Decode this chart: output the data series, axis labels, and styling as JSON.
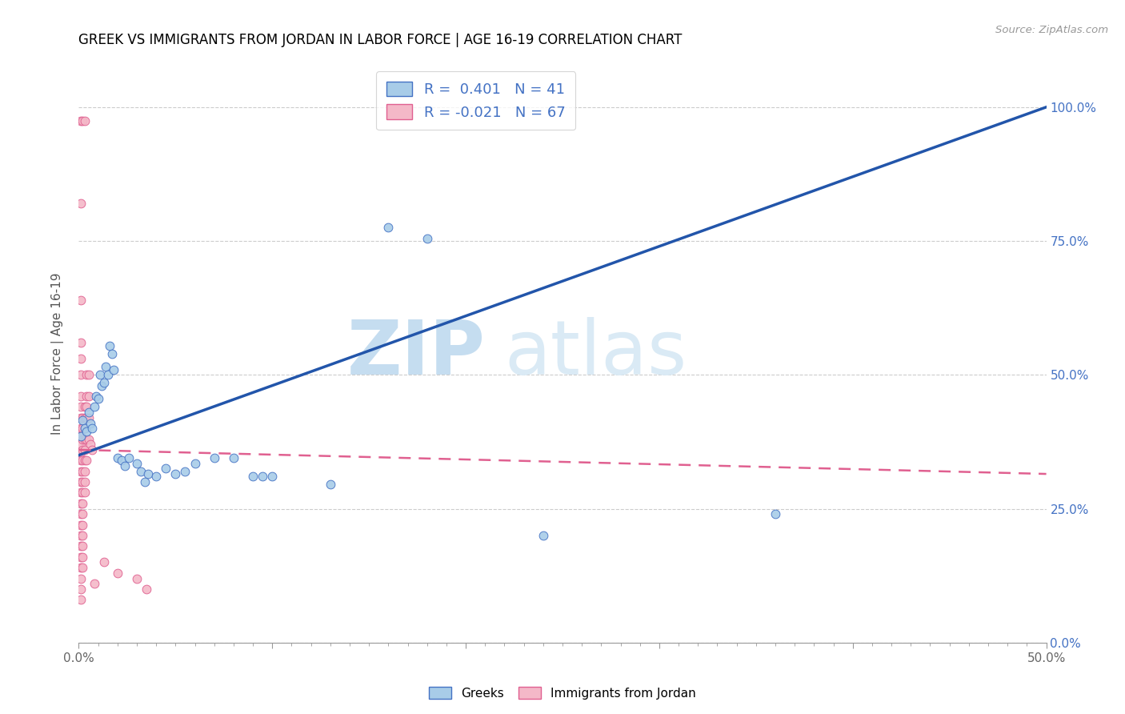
{
  "title": "GREEK VS IMMIGRANTS FROM JORDAN IN LABOR FORCE | AGE 16-19 CORRELATION CHART",
  "source": "Source: ZipAtlas.com",
  "ylabel": "In Labor Force | Age 16-19",
  "xlim": [
    0.0,
    0.5
  ],
  "ylim": [
    0.0,
    1.08
  ],
  "xticks": [
    0.0,
    0.1,
    0.2,
    0.3,
    0.4,
    0.5
  ],
  "xticklabels": [
    "0.0%",
    "",
    "",
    "",
    "",
    "50.0%"
  ],
  "yticks": [
    0.0,
    0.25,
    0.5,
    0.75,
    1.0
  ],
  "yticklabels_right": [
    "0.0%",
    "25.0%",
    "50.0%",
    "75.0%",
    "100.0%"
  ],
  "watermark_zip": "ZIP",
  "watermark_atlas": "atlas",
  "blue_color": "#a8cce8",
  "pink_color": "#f4b8c8",
  "blue_edge": "#4472c4",
  "pink_edge": "#e06090",
  "trendline_blue": "#2255aa",
  "trendline_pink": "#e06090",
  "blue_scatter": [
    [
      0.001,
      0.385
    ],
    [
      0.002,
      0.415
    ],
    [
      0.003,
      0.4
    ],
    [
      0.004,
      0.395
    ],
    [
      0.005,
      0.43
    ],
    [
      0.006,
      0.41
    ],
    [
      0.007,
      0.4
    ],
    [
      0.008,
      0.44
    ],
    [
      0.009,
      0.46
    ],
    [
      0.01,
      0.455
    ],
    [
      0.011,
      0.5
    ],
    [
      0.012,
      0.48
    ],
    [
      0.013,
      0.485
    ],
    [
      0.014,
      0.515
    ],
    [
      0.015,
      0.5
    ],
    [
      0.016,
      0.555
    ],
    [
      0.017,
      0.54
    ],
    [
      0.018,
      0.51
    ],
    [
      0.02,
      0.345
    ],
    [
      0.022,
      0.34
    ],
    [
      0.024,
      0.33
    ],
    [
      0.026,
      0.345
    ],
    [
      0.03,
      0.335
    ],
    [
      0.032,
      0.32
    ],
    [
      0.034,
      0.3
    ],
    [
      0.036,
      0.315
    ],
    [
      0.04,
      0.31
    ],
    [
      0.045,
      0.325
    ],
    [
      0.05,
      0.315
    ],
    [
      0.055,
      0.32
    ],
    [
      0.06,
      0.335
    ],
    [
      0.07,
      0.345
    ],
    [
      0.08,
      0.345
    ],
    [
      0.09,
      0.31
    ],
    [
      0.095,
      0.31
    ],
    [
      0.1,
      0.31
    ],
    [
      0.13,
      0.295
    ],
    [
      0.16,
      0.775
    ],
    [
      0.18,
      0.755
    ],
    [
      0.24,
      0.2
    ],
    [
      0.36,
      0.24
    ]
  ],
  "pink_scatter": [
    [
      0.001,
      0.975
    ],
    [
      0.002,
      0.975
    ],
    [
      0.003,
      0.975
    ],
    [
      0.001,
      0.82
    ],
    [
      0.001,
      0.64
    ],
    [
      0.001,
      0.56
    ],
    [
      0.001,
      0.53
    ],
    [
      0.001,
      0.5
    ],
    [
      0.001,
      0.46
    ],
    [
      0.001,
      0.44
    ],
    [
      0.001,
      0.42
    ],
    [
      0.001,
      0.4
    ],
    [
      0.001,
      0.385
    ],
    [
      0.001,
      0.37
    ],
    [
      0.001,
      0.355
    ],
    [
      0.001,
      0.34
    ],
    [
      0.001,
      0.32
    ],
    [
      0.001,
      0.3
    ],
    [
      0.001,
      0.28
    ],
    [
      0.001,
      0.26
    ],
    [
      0.001,
      0.24
    ],
    [
      0.001,
      0.22
    ],
    [
      0.001,
      0.2
    ],
    [
      0.001,
      0.18
    ],
    [
      0.001,
      0.16
    ],
    [
      0.001,
      0.14
    ],
    [
      0.001,
      0.12
    ],
    [
      0.001,
      0.1
    ],
    [
      0.001,
      0.08
    ],
    [
      0.002,
      0.42
    ],
    [
      0.002,
      0.4
    ],
    [
      0.002,
      0.38
    ],
    [
      0.002,
      0.36
    ],
    [
      0.002,
      0.34
    ],
    [
      0.002,
      0.32
    ],
    [
      0.002,
      0.3
    ],
    [
      0.002,
      0.28
    ],
    [
      0.002,
      0.26
    ],
    [
      0.002,
      0.24
    ],
    [
      0.002,
      0.22
    ],
    [
      0.002,
      0.2
    ],
    [
      0.002,
      0.18
    ],
    [
      0.002,
      0.16
    ],
    [
      0.002,
      0.14
    ],
    [
      0.003,
      0.44
    ],
    [
      0.003,
      0.42
    ],
    [
      0.003,
      0.4
    ],
    [
      0.003,
      0.38
    ],
    [
      0.003,
      0.36
    ],
    [
      0.003,
      0.34
    ],
    [
      0.003,
      0.32
    ],
    [
      0.003,
      0.3
    ],
    [
      0.003,
      0.28
    ],
    [
      0.004,
      0.5
    ],
    [
      0.004,
      0.46
    ],
    [
      0.004,
      0.44
    ],
    [
      0.004,
      0.42
    ],
    [
      0.004,
      0.38
    ],
    [
      0.004,
      0.34
    ],
    [
      0.005,
      0.5
    ],
    [
      0.005,
      0.46
    ],
    [
      0.005,
      0.42
    ],
    [
      0.005,
      0.38
    ],
    [
      0.006,
      0.37
    ],
    [
      0.007,
      0.36
    ],
    [
      0.008,
      0.11
    ],
    [
      0.013,
      0.15
    ],
    [
      0.02,
      0.13
    ],
    [
      0.03,
      0.12
    ],
    [
      0.035,
      0.1
    ]
  ],
  "blue_trend_x": [
    0.0,
    0.5
  ],
  "blue_trend_y": [
    0.35,
    1.0
  ],
  "pink_trend_x": [
    0.0,
    0.5
  ],
  "pink_trend_y": [
    0.36,
    0.315
  ]
}
